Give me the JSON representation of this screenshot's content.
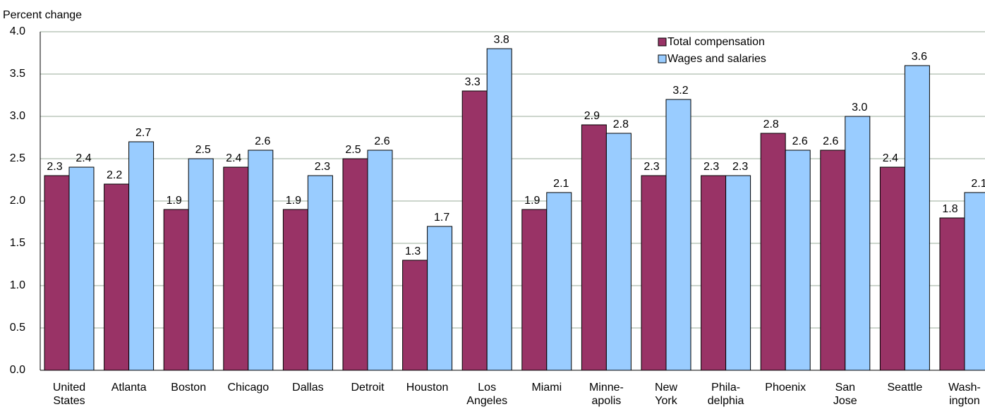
{
  "chart_data": {
    "type": "bar",
    "y_axis_label": "Percent change",
    "categories": [
      "United\nStates",
      "Atlanta",
      "Boston",
      "Chicago",
      "Dallas",
      "Detroit",
      "Houston",
      "Los\nAngeles",
      "Miami",
      "Minne-\napolis",
      "New\nYork",
      "Phila-\ndelphia",
      "Phoenix",
      "San\nJose",
      "Seattle",
      "Wash-\nington"
    ],
    "series": [
      {
        "name": "Total compensation",
        "color": "#993366",
        "values": [
          2.3,
          2.2,
          1.9,
          2.4,
          1.9,
          2.5,
          1.3,
          3.3,
          1.9,
          2.9,
          2.3,
          2.3,
          2.8,
          2.6,
          2.4,
          1.8
        ],
        "value_labels": [
          "2.3",
          "2.2",
          "1.9",
          "2.4",
          "1.9",
          "2.5",
          "1.3",
          "3.3",
          "1.9",
          "2.9",
          "2.3",
          "2.3",
          "2.8",
          "2.6",
          "2.4",
          "1.8"
        ]
      },
      {
        "name": "Wages and salaries",
        "color": "#99ccff",
        "values": [
          2.4,
          2.7,
          2.5,
          2.6,
          2.3,
          2.6,
          1.7,
          3.8,
          2.1,
          2.8,
          3.2,
          2.3,
          2.6,
          3.0,
          3.6,
          2.1
        ],
        "value_labels": [
          "2.4",
          "2.7",
          "2.5",
          "2.6",
          "2.3",
          "2.6",
          "1.7",
          "3.8",
          "2.1",
          "2.8",
          "3.2",
          "2.3",
          "2.6",
          "3.0",
          "3.6",
          "2.1"
        ]
      }
    ],
    "ylim": [
      0,
      4
    ],
    "yticks": [
      {
        "value": 0,
        "label": "0.0"
      },
      {
        "value": 0.5,
        "label": "0.5"
      },
      {
        "value": 1,
        "label": "1.0"
      },
      {
        "value": 1.5,
        "label": "1.5"
      },
      {
        "value": 2,
        "label": "2.0"
      },
      {
        "value": 2.5,
        "label": "2.5"
      },
      {
        "value": 3,
        "label": "3.0"
      },
      {
        "value": 3.5,
        "label": "3.5"
      },
      {
        "value": 4,
        "label": "4.0"
      }
    ],
    "grid": true
  }
}
